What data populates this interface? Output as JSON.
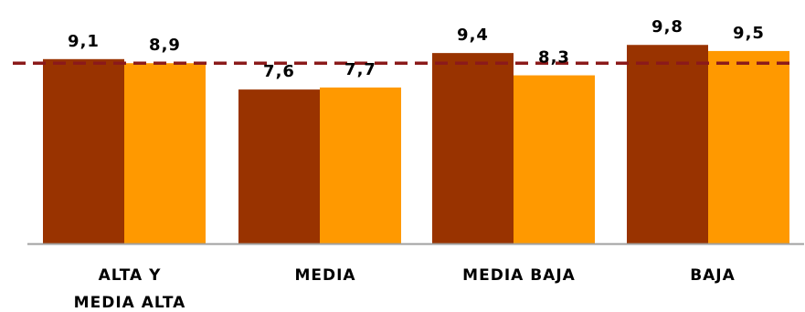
{
  "chart_data": {
    "type": "bar",
    "categories": [
      [
        "ALTA Y",
        "MEDIA ALTA"
      ],
      [
        "MEDIA"
      ],
      [
        "MEDIA BAJA"
      ],
      [
        "BAJA"
      ]
    ],
    "series": [
      {
        "values": [
          9.1,
          7.6,
          9.4,
          9.8
        ],
        "labels": [
          "9,1",
          "7,6",
          "9,4",
          "9,8"
        ],
        "color": "#993300"
      },
      {
        "values": [
          8.9,
          7.7,
          8.3,
          9.5
        ],
        "labels": [
          "8,9",
          "7,7",
          "8,3",
          "9,5"
        ],
        "color": "#ff9900"
      }
    ],
    "reference_line": {
      "value": 8.9,
      "color": "#8b1a1a",
      "style": "dashed"
    },
    "axis_color": "#a0a0a0",
    "grid": false
  }
}
